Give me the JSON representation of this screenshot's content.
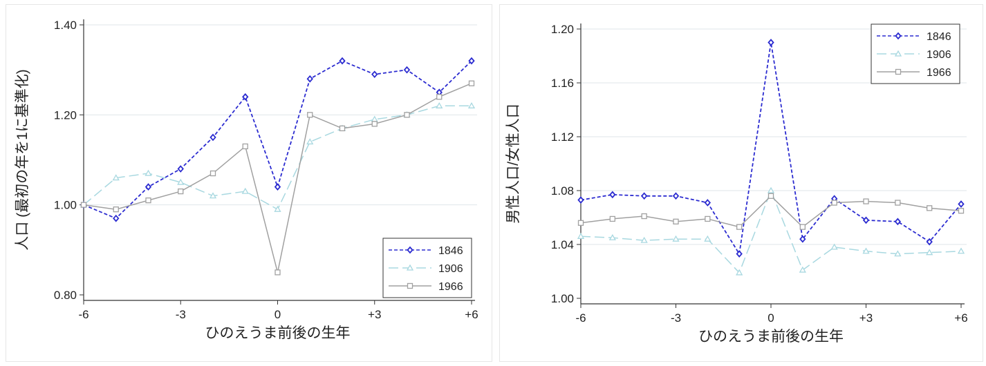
{
  "chart_data": [
    {
      "type": "line",
      "title": "",
      "xlabel": "ひのえうま前後の生年",
      "ylabel": "人口 (最初の年を1に基準化)",
      "x": [
        -6,
        -5,
        -4,
        -3,
        -2,
        -1,
        0,
        1,
        2,
        3,
        4,
        5,
        6
      ],
      "xticks": [
        -6,
        -3,
        0,
        3,
        6
      ],
      "xtick_labels": [
        "-6",
        "-3",
        "0",
        "+3",
        "+6"
      ],
      "ylim": [
        0.8,
        1.4
      ],
      "yticks": [
        0.8,
        1.0,
        1.2,
        1.4
      ],
      "ytick_labels": [
        "0.80",
        "1.00",
        "1.20",
        "1.40"
      ],
      "grid": true,
      "legend_position": "bottom-right",
      "series": [
        {
          "name": "1846",
          "color": "#2b2bd0",
          "marker": "diamond",
          "style": "dash",
          "values": [
            1.0,
            0.97,
            1.04,
            1.08,
            1.15,
            1.24,
            1.04,
            1.28,
            1.32,
            1.29,
            1.3,
            1.25,
            1.32
          ]
        },
        {
          "name": "1906",
          "color": "#a8d8e0",
          "marker": "triangle",
          "style": "longdash",
          "values": [
            1.0,
            1.06,
            1.07,
            1.05,
            1.02,
            1.03,
            0.99,
            1.14,
            1.17,
            1.19,
            1.2,
            1.22,
            1.22
          ]
        },
        {
          "name": "1966",
          "color": "#a0a0a0",
          "marker": "square",
          "style": "solid",
          "values": [
            1.0,
            0.99,
            1.01,
            1.03,
            1.07,
            1.13,
            0.85,
            1.2,
            1.17,
            1.18,
            1.2,
            1.24,
            1.27
          ]
        }
      ]
    },
    {
      "type": "line",
      "title": "",
      "xlabel": "ひのえうま前後の生年",
      "ylabel": "男性人口/女性人口",
      "x": [
        -6,
        -5,
        -4,
        -3,
        -2,
        -1,
        0,
        1,
        2,
        3,
        4,
        5,
        6
      ],
      "xticks": [
        -6,
        -3,
        0,
        3,
        6
      ],
      "xtick_labels": [
        "-6",
        "-3",
        "0",
        "+3",
        "+6"
      ],
      "ylim": [
        1.0,
        1.2
      ],
      "yticks": [
        1.0,
        1.04,
        1.08,
        1.12,
        1.16,
        1.2
      ],
      "ytick_labels": [
        "1.00",
        "1.04",
        "1.08",
        "1.12",
        "1.16",
        "1.20"
      ],
      "grid": true,
      "legend_position": "top-right",
      "series": [
        {
          "name": "1846",
          "color": "#2b2bd0",
          "marker": "diamond",
          "style": "dash",
          "values": [
            1.073,
            1.077,
            1.076,
            1.076,
            1.071,
            1.033,
            1.19,
            1.044,
            1.074,
            1.058,
            1.057,
            1.042,
            1.07
          ]
        },
        {
          "name": "1906",
          "color": "#a8d8e0",
          "marker": "triangle",
          "style": "longdash",
          "values": [
            1.046,
            1.045,
            1.043,
            1.044,
            1.044,
            1.019,
            1.08,
            1.021,
            1.038,
            1.035,
            1.033,
            1.034,
            1.035
          ]
        },
        {
          "name": "1966",
          "color": "#a0a0a0",
          "marker": "square",
          "style": "solid",
          "values": [
            1.056,
            1.059,
            1.061,
            1.057,
            1.059,
            1.053,
            1.076,
            1.053,
            1.071,
            1.072,
            1.071,
            1.067,
            1.065
          ]
        }
      ]
    }
  ]
}
